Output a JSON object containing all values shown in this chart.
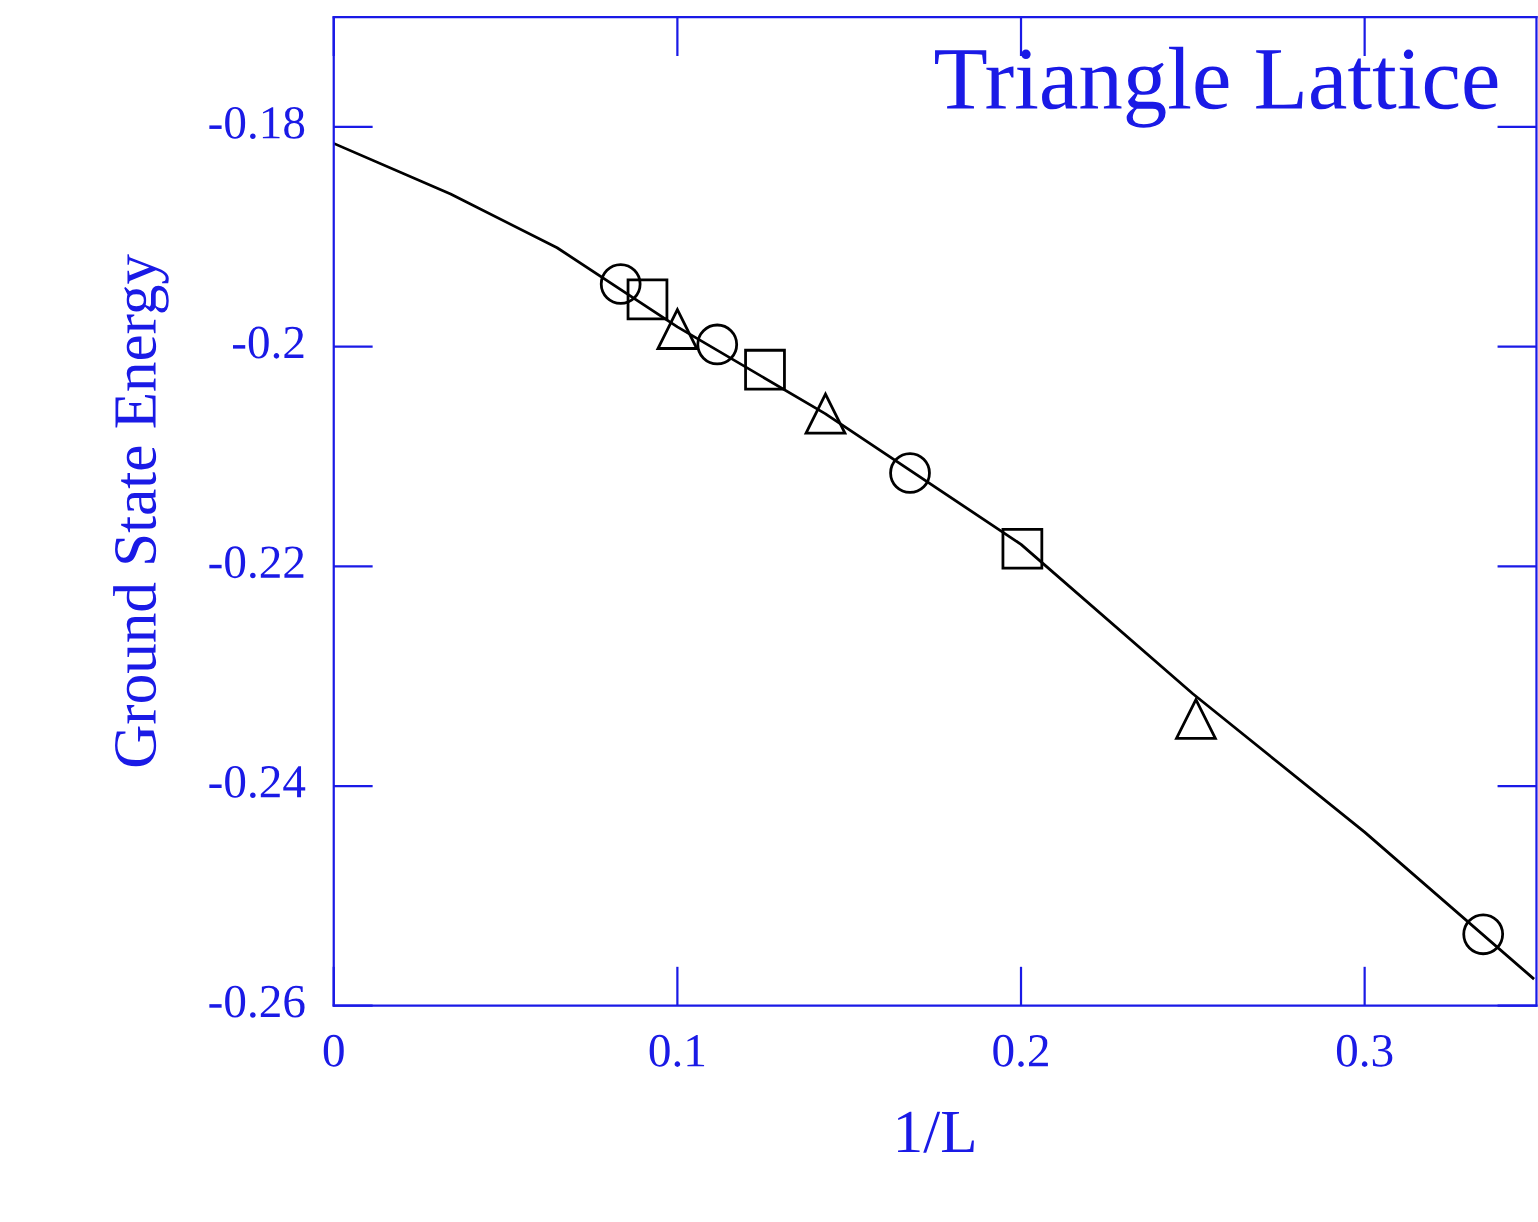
{
  "chart_data": {
    "type": "scatter",
    "title": "Triangle Lattice",
    "xlabel": "1/L",
    "ylabel": "Ground State Energy",
    "xlim": [
      0,
      0.35
    ],
    "ylim": [
      -0.26,
      -0.17
    ],
    "xticks": [
      0,
      0.1,
      0.2,
      0.3
    ],
    "yticks": [
      -0.26,
      -0.24,
      -0.22,
      -0.2,
      -0.18
    ],
    "grid": false,
    "legend": false,
    "series": [
      {
        "type": "scatter",
        "marker": "circle",
        "color": "#000000",
        "x": [
          0.0835,
          0.1116,
          0.1677,
          0.3345
        ],
        "values": [
          -0.1943,
          -0.1998,
          -0.2115,
          -0.2535
        ]
      },
      {
        "type": "scatter",
        "marker": "square",
        "color": "#000000",
        "x": [
          0.0913,
          0.1255,
          0.2004
        ],
        "values": [
          -0.1957,
          -0.2021,
          -0.2184
        ]
      },
      {
        "type": "scatter",
        "marker": "triangle",
        "color": "#000000",
        "x": [
          0.1,
          0.1431,
          0.2509
        ],
        "values": [
          -0.1984,
          -0.2061,
          -0.2339
        ]
      },
      {
        "type": "line",
        "marker": "none",
        "line_style": "solid",
        "color": "#000000",
        "x": [
          0,
          0.034,
          0.065,
          0.1,
          0.143,
          0.2,
          0.25,
          0.3,
          0.349
        ],
        "values": [
          -0.1815,
          -0.1861,
          -0.191,
          -0.1982,
          -0.2061,
          -0.218,
          -0.2316,
          -0.2442,
          -0.2575
        ]
      }
    ]
  }
}
